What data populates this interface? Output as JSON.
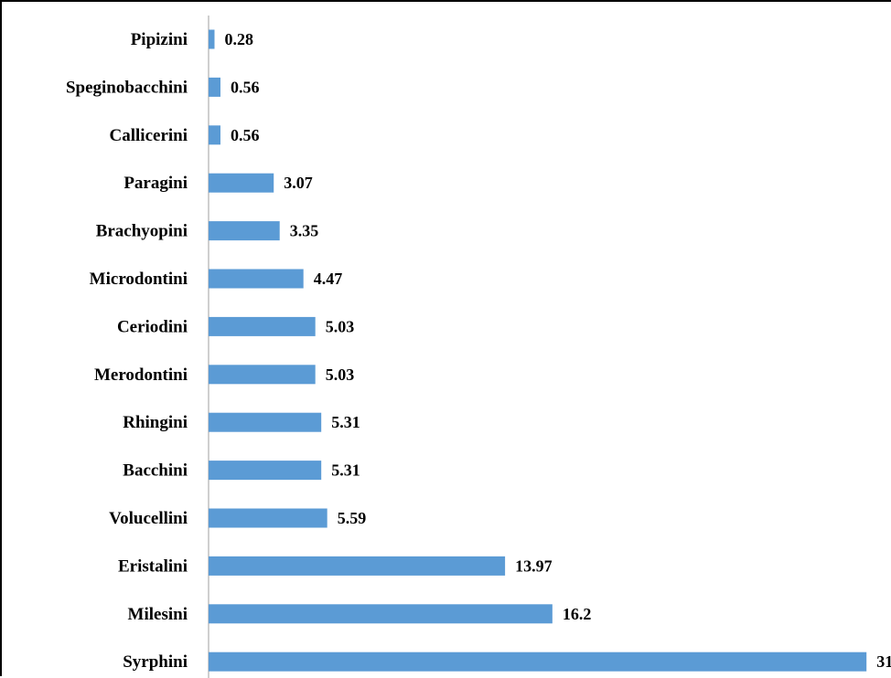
{
  "chart_data": {
    "type": "bar",
    "orientation": "horizontal",
    "title": "",
    "xlabel": "",
    "ylabel": "",
    "categories": [
      "Pipizini",
      "Speginobacchini",
      "Callicerini",
      "Paragini",
      "Brachyopini",
      "Microdontini",
      "Ceriodini",
      "Merodontini",
      "Rhingini",
      "Bacchini",
      "Volucellini",
      "Eristalini",
      "Milesini",
      "Syrphini"
    ],
    "values": [
      0.28,
      0.56,
      0.56,
      3.07,
      3.35,
      4.47,
      5.03,
      5.03,
      5.31,
      5.31,
      5.59,
      13.97,
      16.2,
      31
    ],
    "value_labels": [
      "0.28",
      "0.56",
      "0.56",
      "3.07",
      "3.35",
      "4.47",
      "5.03",
      "5.03",
      "5.31",
      "5.31",
      "5.59",
      "13.97",
      "16.2",
      "31"
    ],
    "bar_color": "#5b9bd5",
    "xlim": [
      0,
      31
    ],
    "grid": false,
    "legend": "none"
  }
}
